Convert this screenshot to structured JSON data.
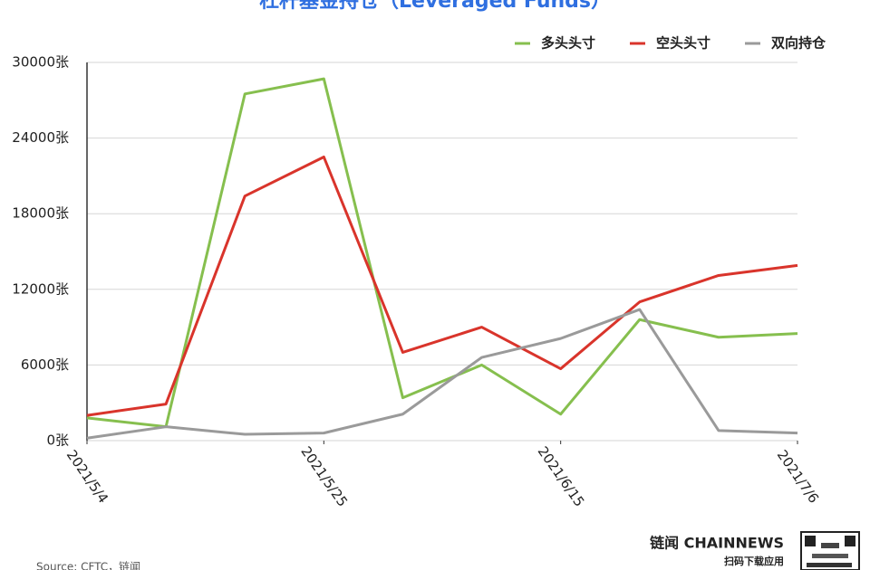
{
  "chart_data": {
    "type": "line",
    "title": "杠杆基金持仓（Leveraged Funds）",
    "source": "Source: CFTC，链闻",
    "categories": [
      "2021/5/4",
      null,
      null,
      "2021/5/25",
      null,
      null,
      "2021/6/15",
      null,
      null,
      "2021/7/6"
    ],
    "series": [
      {
        "name": "多头头寸",
        "color": "#86bf4e",
        "values": [
          1800,
          1100,
          27500,
          28700,
          3400,
          6000,
          2100,
          9600,
          8200,
          8500
        ]
      },
      {
        "name": "空头头寸",
        "color": "#d9342b",
        "values": [
          2000,
          2900,
          19400,
          22500,
          7000,
          9000,
          5700,
          11000,
          13100,
          13900
        ]
      },
      {
        "name": "双向持仓",
        "color": "#9a9a9a",
        "values": [
          200,
          1100,
          500,
          600,
          2100,
          6600,
          8100,
          10400,
          800,
          600
        ]
      }
    ],
    "ylim": [
      0,
      30000
    ],
    "yticks": [
      {
        "value": 0,
        "label": "0张"
      },
      {
        "value": 6000,
        "label": "6000张"
      },
      {
        "value": 12000,
        "label": "12000张"
      },
      {
        "value": 18000,
        "label": "18000张"
      },
      {
        "value": 24000,
        "label": "24000张"
      },
      {
        "value": 30000,
        "label": "30000张"
      }
    ],
    "grid": true,
    "legend": "top-right"
  },
  "logo": {
    "brand": "链闻 CHAINNEWS",
    "tagline": "扫码下载应用"
  }
}
